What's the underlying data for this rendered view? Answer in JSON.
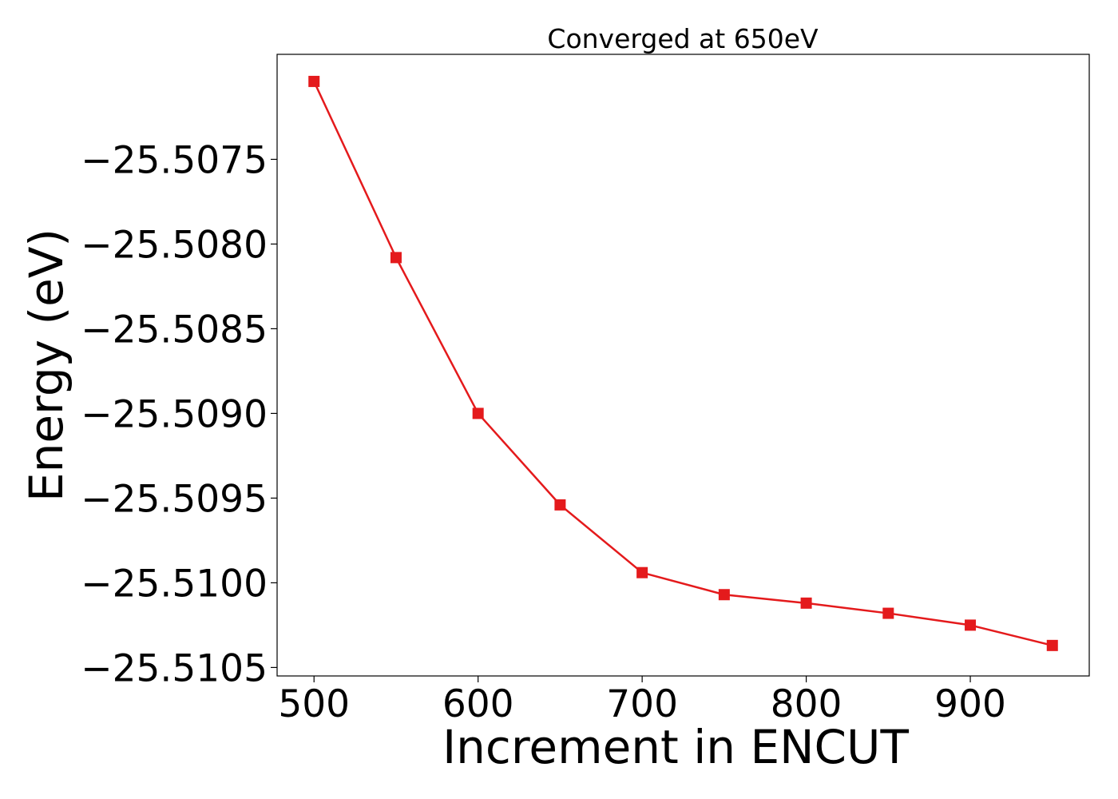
{
  "chart_data": {
    "type": "line",
    "title": "Converged at 650eV",
    "xlabel": "Increment in ENCUT",
    "ylabel": "Energy (eV)",
    "x": [
      500,
      550,
      600,
      650,
      700,
      750,
      800,
      850,
      900,
      950
    ],
    "series": [
      {
        "values": [
          -25.50704,
          -25.50808,
          -25.509,
          -25.50954,
          -25.50994,
          -25.51007,
          -25.51012,
          -25.51018,
          -25.51025,
          -25.51037
        ],
        "color": "#e41a1c",
        "marker": "square"
      }
    ],
    "xticks": [
      500,
      600,
      700,
      800,
      900
    ],
    "xtick_labels": [
      "500",
      "600",
      "700",
      "800",
      "900"
    ],
    "yticks": [
      -25.5075,
      -25.508,
      -25.5085,
      -25.509,
      -25.5095,
      -25.51,
      -25.5105
    ],
    "ytick_labels": [
      "−25.5075",
      "−25.5080",
      "−25.5085",
      "−25.5090",
      "−25.5095",
      "−25.5100",
      "−25.5105"
    ],
    "xlim": [
      477.5,
      972.5
    ],
    "ylim": [
      -25.51055,
      -25.50688
    ],
    "grid": false,
    "legend": "none"
  }
}
